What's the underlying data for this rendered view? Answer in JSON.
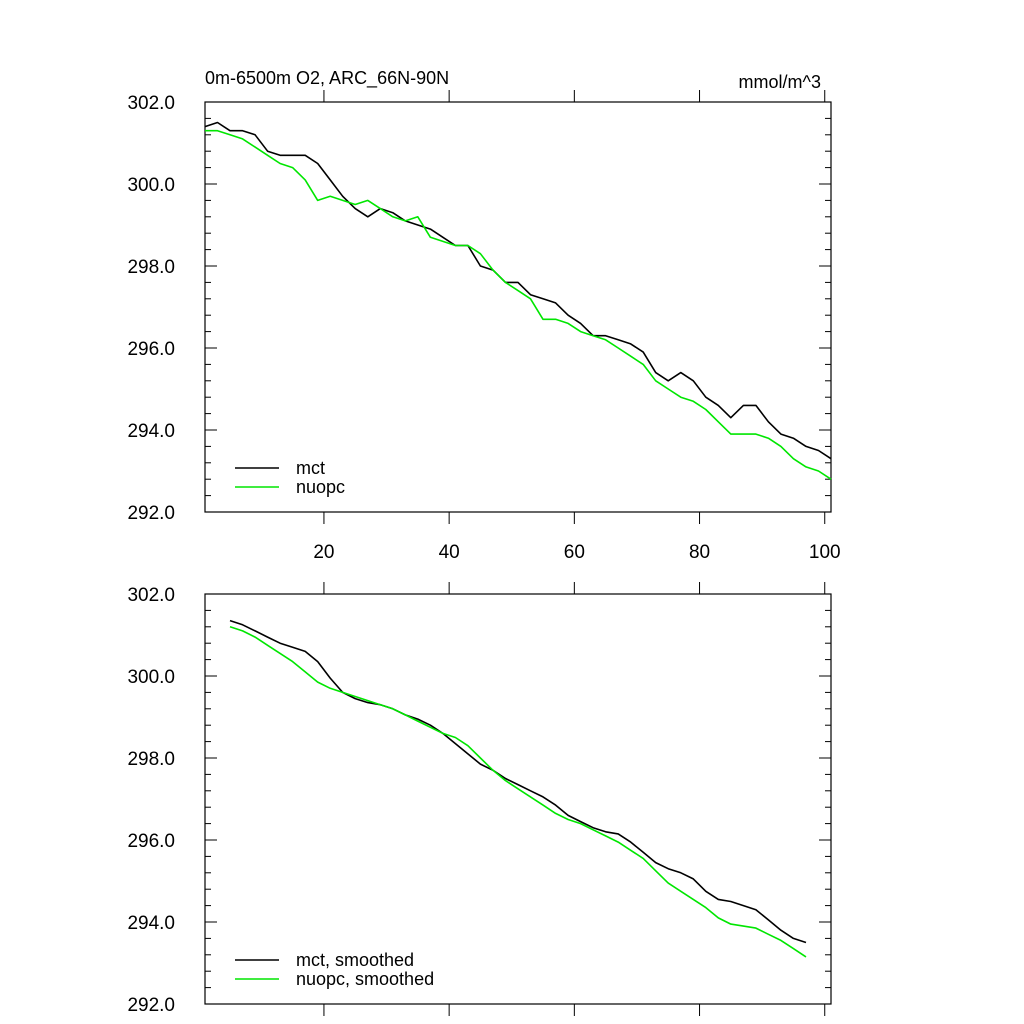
{
  "chart_data": [
    {
      "type": "line",
      "title": "0m-6500m O2, ARC_66N-90N",
      "units": "mmol/m^3",
      "xlim": [
        1,
        101
      ],
      "ylim": [
        292,
        302
      ],
      "x_ticks": [
        20,
        40,
        60,
        80,
        100
      ],
      "x_tick_labels": [
        "20",
        "40",
        "60",
        "80",
        "100"
      ],
      "y_ticks": [
        292,
        294,
        296,
        298,
        300,
        302
      ],
      "y_tick_labels": [
        "292.0",
        "294.0",
        "296.0",
        "298.0",
        "300.0",
        "302.0"
      ],
      "legend_position": "bottom-left",
      "series": [
        {
          "name": "mct",
          "color": "#000000",
          "x": [
            1,
            3,
            5,
            7,
            9,
            11,
            13,
            15,
            17,
            19,
            21,
            23,
            25,
            27,
            29,
            31,
            33,
            35,
            37,
            39,
            41,
            43,
            45,
            47,
            49,
            51,
            53,
            55,
            57,
            59,
            61,
            63,
            65,
            67,
            69,
            71,
            73,
            75,
            77,
            79,
            81,
            83,
            85,
            87,
            89,
            91,
            93,
            95,
            97,
            99,
            101
          ],
          "values": [
            301.4,
            301.5,
            301.3,
            301.3,
            301.2,
            300.8,
            300.7,
            300.7,
            300.7,
            300.5,
            300.1,
            299.7,
            299.4,
            299.2,
            299.4,
            299.3,
            299.1,
            299.0,
            298.9,
            298.7,
            298.5,
            298.5,
            298.0,
            297.9,
            297.6,
            297.6,
            297.3,
            297.2,
            297.1,
            296.8,
            296.6,
            296.3,
            296.3,
            296.2,
            296.1,
            295.9,
            295.4,
            295.2,
            295.4,
            295.2,
            294.8,
            294.6,
            294.3,
            294.6,
            294.6,
            294.2,
            293.9,
            293.8,
            293.6,
            293.5,
            293.3
          ]
        },
        {
          "name": "nuopc",
          "color": "#00e600",
          "x": [
            1,
            3,
            5,
            7,
            9,
            11,
            13,
            15,
            17,
            19,
            21,
            23,
            25,
            27,
            29,
            31,
            33,
            35,
            37,
            39,
            41,
            43,
            45,
            47,
            49,
            51,
            53,
            55,
            57,
            59,
            61,
            63,
            65,
            67,
            69,
            71,
            73,
            75,
            77,
            79,
            81,
            83,
            85,
            87,
            89,
            91,
            93,
            95,
            97,
            99,
            101
          ],
          "values": [
            301.3,
            301.3,
            301.2,
            301.1,
            300.9,
            300.7,
            300.5,
            300.4,
            300.1,
            299.6,
            299.7,
            299.6,
            299.5,
            299.6,
            299.4,
            299.2,
            299.1,
            299.2,
            298.7,
            298.6,
            298.5,
            298.5,
            298.3,
            297.9,
            297.6,
            297.4,
            297.2,
            296.7,
            296.7,
            296.6,
            296.4,
            296.3,
            296.2,
            296.0,
            295.8,
            295.6,
            295.2,
            295.0,
            294.8,
            294.7,
            294.5,
            294.2,
            293.9,
            293.9,
            293.9,
            293.8,
            293.6,
            293.3,
            293.1,
            293.0,
            292.8
          ]
        }
      ]
    },
    {
      "type": "line",
      "title": "",
      "xlim": [
        1,
        101
      ],
      "ylim": [
        292,
        302
      ],
      "x_ticks": [
        20,
        40,
        60,
        80,
        100
      ],
      "y_ticks": [
        292,
        294,
        296,
        298,
        300,
        302
      ],
      "y_tick_labels": [
        "292.0",
        "294.0",
        "296.0",
        "298.0",
        "300.0",
        "302.0"
      ],
      "legend_position": "bottom-left",
      "series": [
        {
          "name": "mct, smoothed",
          "color": "#000000",
          "x": [
            5,
            7,
            9,
            11,
            13,
            15,
            17,
            19,
            21,
            23,
            25,
            27,
            29,
            31,
            33,
            35,
            37,
            39,
            41,
            43,
            45,
            47,
            49,
            51,
            53,
            55,
            57,
            59,
            61,
            63,
            65,
            67,
            69,
            71,
            73,
            75,
            77,
            79,
            81,
            83,
            85,
            87,
            89,
            91,
            93,
            95,
            97
          ],
          "values": [
            301.35,
            301.25,
            301.1,
            300.95,
            300.8,
            300.7,
            300.6,
            300.35,
            299.95,
            299.6,
            299.45,
            299.35,
            299.3,
            299.2,
            299.05,
            298.95,
            298.8,
            298.6,
            298.35,
            298.1,
            297.85,
            297.7,
            297.5,
            297.35,
            297.2,
            297.05,
            296.85,
            296.6,
            296.45,
            296.3,
            296.2,
            296.15,
            295.95,
            295.7,
            295.45,
            295.3,
            295.2,
            295.05,
            294.75,
            294.55,
            294.5,
            294.4,
            294.3,
            294.05,
            293.8,
            293.6,
            293.5
          ]
        },
        {
          "name": "nuopc, smoothed",
          "color": "#00e600",
          "x": [
            5,
            7,
            9,
            11,
            13,
            15,
            17,
            19,
            21,
            23,
            25,
            27,
            29,
            31,
            33,
            35,
            37,
            39,
            41,
            43,
            45,
            47,
            49,
            51,
            53,
            55,
            57,
            59,
            61,
            63,
            65,
            67,
            69,
            71,
            73,
            75,
            77,
            79,
            81,
            83,
            85,
            87,
            89,
            91,
            93,
            95,
            97
          ],
          "values": [
            301.2,
            301.1,
            300.95,
            300.75,
            300.55,
            300.35,
            300.1,
            299.85,
            299.7,
            299.6,
            299.5,
            299.4,
            299.3,
            299.2,
            299.05,
            298.9,
            298.75,
            298.6,
            298.5,
            298.3,
            298.0,
            297.7,
            297.45,
            297.25,
            297.05,
            296.85,
            296.65,
            296.5,
            296.4,
            296.25,
            296.1,
            295.95,
            295.75,
            295.55,
            295.25,
            294.95,
            294.75,
            294.55,
            294.35,
            294.1,
            293.95,
            293.9,
            293.85,
            293.7,
            293.55,
            293.35,
            293.15
          ]
        }
      ]
    }
  ]
}
